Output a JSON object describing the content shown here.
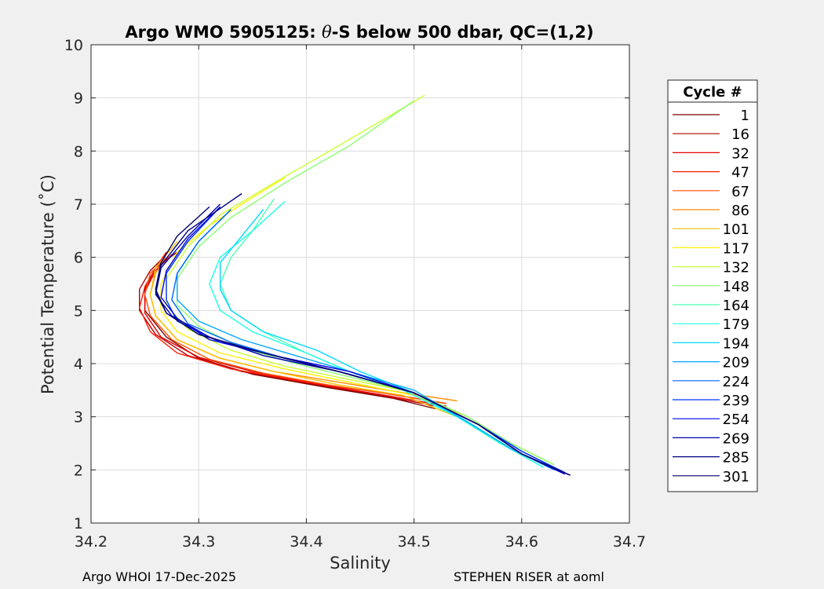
{
  "chart_data": {
    "type": "line",
    "title_parts": [
      "Argo WMO 5905125: ",
      "θ",
      "-S below 500 dbar,  QC=(1,2)"
    ],
    "xlabel": "Salinity",
    "ylabel": "Potential Temperature (˚C)",
    "xlim": [
      34.2,
      34.7
    ],
    "ylim": [
      1,
      10
    ],
    "xticks": [
      "34.2",
      "34.3",
      "34.4",
      "34.5",
      "34.6",
      "34.7"
    ],
    "yticks": [
      "1",
      "2",
      "3",
      "4",
      "5",
      "6",
      "7",
      "8",
      "9",
      "10"
    ],
    "grid": true,
    "legend": {
      "title": "Cycle #",
      "placement": "right-outside",
      "entries": [
        {
          "label": "1",
          "color": "#7f0000"
        },
        {
          "label": "16",
          "color": "#b20000"
        },
        {
          "label": "32",
          "color": "#e60000"
        },
        {
          "label": "47",
          "color": "#ff1a00"
        },
        {
          "label": "67",
          "color": "#ff4d00"
        },
        {
          "label": "86",
          "color": "#ff8c00"
        },
        {
          "label": "101",
          "color": "#ffbf00"
        },
        {
          "label": "117",
          "color": "#fff200"
        },
        {
          "label": "132",
          "color": "#ccff33"
        },
        {
          "label": "148",
          "color": "#8cff73"
        },
        {
          "label": "164",
          "color": "#4dffb2"
        },
        {
          "label": "179",
          "color": "#1affe6"
        },
        {
          "label": "194",
          "color": "#00d9ff"
        },
        {
          "label": "209",
          "color": "#00a6ff"
        },
        {
          "label": "224",
          "color": "#0066ff"
        },
        {
          "label": "239",
          "color": "#0033ff"
        },
        {
          "label": "254",
          "color": "#0000e6"
        },
        {
          "label": "269",
          "color": "#0000b2"
        },
        {
          "label": "285",
          "color": "#00007f"
        },
        {
          "label": "301",
          "color": "#000066"
        }
      ]
    },
    "profiles": [
      {
        "color": "#7f0000",
        "x": [
          34.52,
          34.48,
          34.42,
          34.35,
          34.3,
          34.27,
          34.25,
          34.25,
          34.26,
          34.28
        ],
        "y": [
          3.15,
          3.35,
          3.55,
          3.8,
          4.1,
          4.5,
          5.0,
          5.4,
          5.8,
          6.1
        ]
      },
      {
        "color": "#b20000",
        "x": [
          34.52,
          34.47,
          34.41,
          34.34,
          34.29,
          34.26,
          34.245,
          34.245,
          34.255,
          34.27
        ],
        "y": [
          3.2,
          3.4,
          3.6,
          3.85,
          4.15,
          4.55,
          5.0,
          5.4,
          5.75,
          6.05
        ]
      },
      {
        "color": "#e60000",
        "x": [
          34.53,
          34.48,
          34.42,
          34.35,
          34.3,
          34.265,
          34.25,
          34.25,
          34.26,
          34.275
        ],
        "y": [
          3.2,
          3.38,
          3.58,
          3.85,
          4.12,
          4.5,
          4.95,
          5.35,
          5.75,
          6.05
        ]
      },
      {
        "color": "#ff1a00",
        "x": [
          34.53,
          34.47,
          34.4,
          34.33,
          34.28,
          34.255,
          34.245,
          34.25,
          34.26,
          34.27
        ],
        "y": [
          3.25,
          3.45,
          3.65,
          3.9,
          4.2,
          4.6,
          5.05,
          5.45,
          5.8,
          6.1
        ]
      },
      {
        "color": "#ff4d00",
        "x": [
          34.53,
          34.48,
          34.42,
          34.36,
          34.31,
          34.275,
          34.255,
          34.25,
          34.255,
          34.27
        ],
        "y": [
          3.25,
          3.42,
          3.6,
          3.82,
          4.08,
          4.45,
          4.9,
          5.3,
          5.7,
          6.0
        ]
      },
      {
        "color": "#ff8c00",
        "x": [
          34.54,
          34.49,
          34.43,
          34.37,
          34.32,
          34.28,
          34.26,
          34.255,
          34.26,
          34.27
        ],
        "y": [
          3.3,
          3.45,
          3.65,
          3.85,
          4.1,
          4.45,
          4.9,
          5.3,
          5.7,
          6.0
        ]
      },
      {
        "color": "#ffbf00",
        "x": [
          34.62,
          34.58,
          34.54,
          34.49,
          34.43,
          34.37,
          34.32,
          34.28,
          34.26,
          34.255,
          34.26,
          34.28
        ],
        "y": [
          2.1,
          2.5,
          3.0,
          3.4,
          3.6,
          3.85,
          4.1,
          4.45,
          4.9,
          5.3,
          5.8,
          6.3
        ]
      },
      {
        "color": "#fff200",
        "x": [
          34.63,
          34.59,
          34.55,
          34.5,
          34.44,
          34.38,
          34.32,
          34.28,
          34.265,
          34.265,
          34.28,
          34.31,
          34.34,
          34.38
        ],
        "y": [
          2.1,
          2.5,
          3.0,
          3.4,
          3.65,
          3.9,
          4.2,
          4.6,
          5.0,
          5.5,
          6.1,
          6.6,
          7.0,
          7.5
        ]
      },
      {
        "color": "#ccff33",
        "x": [
          34.63,
          34.59,
          34.55,
          34.5,
          34.44,
          34.38,
          34.33,
          34.29,
          34.27,
          34.27,
          34.29,
          34.32,
          34.37,
          34.43,
          34.51
        ],
        "y": [
          2.1,
          2.5,
          3.0,
          3.45,
          3.7,
          3.95,
          4.25,
          4.65,
          5.1,
          5.6,
          6.2,
          6.8,
          7.4,
          8.1,
          9.05
        ]
      },
      {
        "color": "#8cff73",
        "x": [
          34.63,
          34.59,
          34.55,
          34.5,
          34.44,
          34.39,
          34.34,
          34.3,
          34.28,
          34.28,
          34.3,
          34.33,
          34.38,
          34.44,
          34.5
        ],
        "y": [
          2.1,
          2.5,
          3.0,
          3.45,
          3.75,
          4.0,
          4.3,
          4.7,
          5.1,
          5.6,
          6.2,
          6.75,
          7.4,
          8.1,
          8.95
        ]
      },
      {
        "color": "#4dffb2",
        "x": [
          34.62,
          34.58,
          34.54,
          34.49,
          34.44,
          34.4,
          34.36,
          34.33,
          34.32,
          34.33,
          34.35,
          34.37
        ],
        "y": [
          2.1,
          2.5,
          3.0,
          3.5,
          3.85,
          4.2,
          4.6,
          5.0,
          5.5,
          6.0,
          6.5,
          7.1
        ]
      },
      {
        "color": "#1affe6",
        "x": [
          34.62,
          34.58,
          34.54,
          34.49,
          34.44,
          34.4,
          34.35,
          34.32,
          34.31,
          34.32,
          34.35,
          34.38
        ],
        "y": [
          2.05,
          2.5,
          3.0,
          3.5,
          3.85,
          4.2,
          4.6,
          5.0,
          5.5,
          6.0,
          6.5,
          7.05
        ]
      },
      {
        "color": "#00d9ff",
        "x": [
          34.63,
          34.59,
          34.55,
          34.5,
          34.45,
          34.41,
          34.36,
          34.33,
          34.32,
          34.32,
          34.34,
          34.36
        ],
        "y": [
          2.0,
          2.4,
          2.9,
          3.45,
          3.85,
          4.25,
          4.6,
          5.0,
          5.4,
          5.9,
          6.4,
          6.9
        ]
      },
      {
        "color": "#00a6ff",
        "x": [
          34.63,
          34.59,
          34.55,
          34.5,
          34.44,
          34.39,
          34.34,
          34.3,
          34.28,
          34.28,
          34.3,
          34.33
        ],
        "y": [
          2.0,
          2.4,
          2.9,
          3.5,
          3.85,
          4.15,
          4.45,
          4.8,
          5.2,
          5.7,
          6.3,
          6.9
        ]
      },
      {
        "color": "#0066ff",
        "x": [
          34.64,
          34.6,
          34.56,
          34.5,
          34.44,
          34.38,
          34.33,
          34.29,
          34.275,
          34.28,
          34.3,
          34.33
        ],
        "y": [
          1.95,
          2.35,
          2.85,
          3.45,
          3.8,
          4.1,
          4.4,
          4.75,
          5.2,
          5.7,
          6.3,
          6.9
        ]
      },
      {
        "color": "#0033ff",
        "x": [
          34.64,
          34.6,
          34.56,
          34.5,
          34.44,
          34.38,
          34.32,
          34.28,
          34.27,
          34.27,
          34.29,
          34.32
        ],
        "y": [
          1.95,
          2.35,
          2.85,
          3.45,
          3.8,
          4.1,
          4.4,
          4.8,
          5.2,
          5.7,
          6.3,
          6.95
        ]
      },
      {
        "color": "#0000e6",
        "x": [
          34.64,
          34.6,
          34.56,
          34.5,
          34.44,
          34.37,
          34.31,
          34.28,
          34.265,
          34.27,
          34.29,
          34.32
        ],
        "y": [
          1.92,
          2.3,
          2.85,
          3.45,
          3.85,
          4.15,
          4.45,
          4.85,
          5.25,
          5.75,
          6.35,
          6.95
        ]
      },
      {
        "color": "#0000b2",
        "x": [
          34.645,
          34.6,
          34.56,
          34.5,
          34.43,
          34.36,
          34.31,
          34.275,
          34.26,
          34.265,
          34.29,
          34.32
        ],
        "y": [
          1.9,
          2.3,
          2.85,
          3.45,
          3.85,
          4.15,
          4.5,
          4.9,
          5.3,
          5.8,
          6.4,
          7.0
        ]
      },
      {
        "color": "#00007f",
        "x": [
          34.645,
          34.6,
          34.56,
          34.5,
          34.43,
          34.36,
          34.3,
          34.27,
          34.26,
          34.265,
          34.29,
          34.34
        ],
        "y": [
          1.9,
          2.3,
          2.85,
          3.45,
          3.85,
          4.2,
          4.55,
          4.95,
          5.35,
          5.85,
          6.5,
          7.2
        ]
      },
      {
        "color": "#000066",
        "x": [
          34.645,
          34.6,
          34.56,
          34.5,
          34.43,
          34.36,
          34.3,
          34.27,
          34.26,
          34.265,
          34.28,
          34.31
        ],
        "y": [
          1.9,
          2.3,
          2.85,
          3.45,
          3.85,
          4.2,
          4.55,
          4.95,
          5.4,
          5.9,
          6.4,
          6.95
        ]
      }
    ]
  },
  "footer": {
    "left": "Argo WHOI 17-Dec-2025",
    "right": "STEPHEN RISER at aoml"
  }
}
